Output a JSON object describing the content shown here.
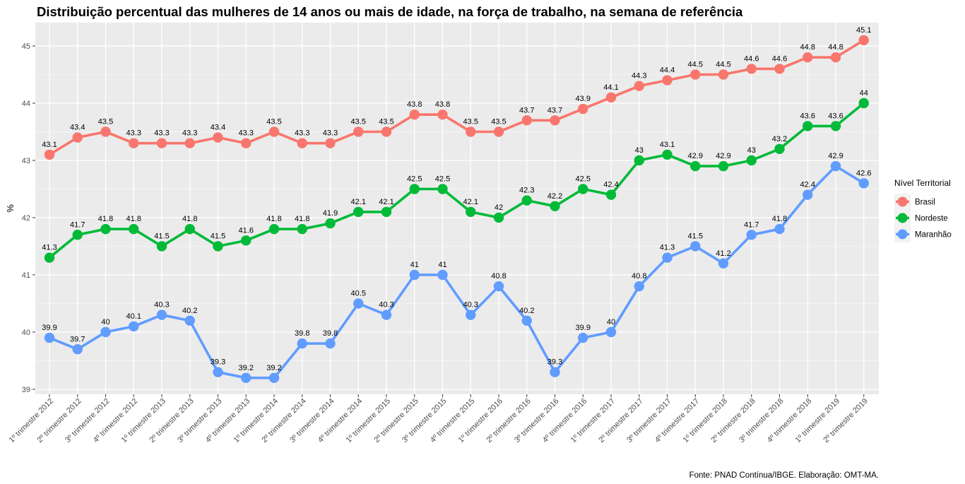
{
  "chart_data": {
    "type": "line",
    "title": "Distribuição percentual das mulheres de 14 anos ou mais de idade, na força de trabalho, na semana de referência",
    "xlabel": "",
    "ylabel": "%",
    "ylim": [
      39,
      45.4
    ],
    "yticks": [
      39,
      40,
      41,
      42,
      43,
      44,
      45
    ],
    "grid": true,
    "legend_title": "Nível Territorial",
    "legend_position": "right",
    "caption": "Fonte: PNAD Contínua/IBGE. Elaboração: OMT-MA.",
    "categories": [
      "1º trimestre 2012",
      "2º trimestre 2012",
      "3º trimestre 2012",
      "4º trimestre 2012",
      "1º trimestre 2013",
      "2º trimestre 2013",
      "3º trimestre 2013",
      "4º trimestre 2013",
      "1º trimestre 2014",
      "2º trimestre 2014",
      "3º trimestre 2014",
      "4º trimestre 2014",
      "1º trimestre 2015",
      "2º trimestre 2015",
      "3º trimestre 2015",
      "4º trimestre 2015",
      "1º trimestre 2016",
      "2º trimestre 2016",
      "3º trimestre 2016",
      "4º trimestre 2016",
      "1º trimestre 2017",
      "2º trimestre 2017",
      "3º trimestre 2017",
      "4º trimestre 2017",
      "1º trimestre 2018",
      "2º trimestre 2018",
      "3º trimestre 2018",
      "4º trimestre 2018",
      "1º trimestre 2019",
      "2º trimestre 2019"
    ],
    "series": [
      {
        "name": "Brasil",
        "color": "#f8766d",
        "values": [
          43.1,
          43.4,
          43.5,
          43.3,
          43.3,
          43.3,
          43.4,
          43.3,
          43.5,
          43.3,
          43.3,
          43.5,
          43.5,
          43.8,
          43.8,
          43.5,
          43.5,
          43.7,
          43.7,
          43.9,
          44.1,
          44.3,
          44.4,
          44.5,
          44.5,
          44.6,
          44.6,
          44.8,
          44.8,
          45.1
        ],
        "labels": [
          "43.1",
          "43.4",
          "43.5",
          "43.3",
          "43.3",
          "43.3",
          "43.4",
          "43.3",
          "43.5",
          "43.3",
          "43.3",
          "43.5",
          "43.5",
          "43.8",
          "43.8",
          "43.5",
          "43.5",
          "43.7",
          "43.7",
          "43.9",
          "44.1",
          "44.3",
          "44.4",
          "44.5",
          "44.5",
          "44.6",
          "44.6",
          "44.8",
          "44.8",
          "45.1"
        ]
      },
      {
        "name": "Nordeste",
        "color": "#00ba38",
        "values": [
          41.3,
          41.7,
          41.8,
          41.8,
          41.5,
          41.8,
          41.5,
          41.6,
          41.8,
          41.8,
          41.9,
          42.1,
          42.1,
          42.5,
          42.5,
          42.1,
          42.0,
          42.3,
          42.2,
          42.5,
          42.4,
          43.0,
          43.1,
          42.9,
          42.9,
          43.0,
          43.2,
          43.6,
          43.6,
          44.0
        ],
        "labels": [
          "41.3",
          "41.7",
          "41.8",
          "41.8",
          "41.5",
          "41.8",
          "41.5",
          "41.6",
          "41.8",
          "41.8",
          "41.9",
          "42.1",
          "42.1",
          "42.5",
          "42.5",
          "42.1",
          "42",
          "42.3",
          "42.2",
          "42.5",
          "42.4",
          "43",
          "43.1",
          "42.9",
          "42.9",
          "43",
          "43.2",
          "43.6",
          "43.6",
          "44"
        ]
      },
      {
        "name": "Maranhão",
        "color": "#619cff",
        "values": [
          39.9,
          39.7,
          40.0,
          40.1,
          40.3,
          40.2,
          39.3,
          39.2,
          39.2,
          39.8,
          39.8,
          40.5,
          40.3,
          41.0,
          41.0,
          40.3,
          40.8,
          40.2,
          39.3,
          39.9,
          40.0,
          40.8,
          41.3,
          41.5,
          41.2,
          41.7,
          41.8,
          42.4,
          42.9,
          42.6
        ],
        "labels": [
          "39.9",
          "39.7",
          "40",
          "40.1",
          "40.3",
          "40.2",
          "39.3",
          "39.2",
          "39.2",
          "39.8",
          "39.8",
          "40.5",
          "40.3",
          "41",
          "41",
          "40.3",
          "40.8",
          "40.2",
          "39.3",
          "39.9",
          "40",
          "40.8",
          "41.3",
          "41.5",
          "41.2",
          "41.7",
          "41.8",
          "42.4",
          "42.9",
          "42.6"
        ]
      }
    ]
  }
}
